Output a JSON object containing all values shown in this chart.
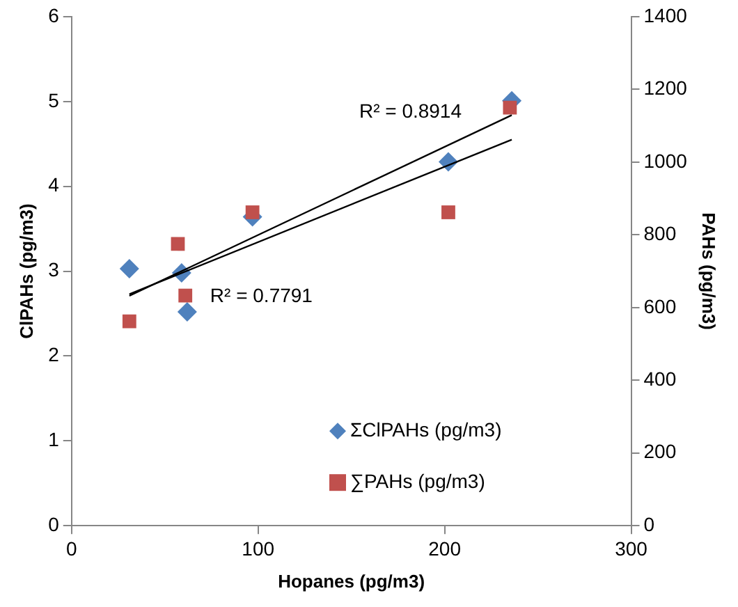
{
  "chart_data": {
    "type": "scatter",
    "xlabel": "Hopanes (pg/m3)",
    "ylabel": "ClPAHs (pg/m3)",
    "y2label": "PAHs (pg/m3)",
    "xlim": [
      0,
      300
    ],
    "xticks": [
      0,
      100,
      200,
      300
    ],
    "ylim": [
      0,
      6
    ],
    "yticks": [
      0,
      1,
      2,
      3,
      4,
      5,
      6
    ],
    "y2lim": [
      0,
      1400
    ],
    "y2ticks": [
      0,
      200,
      400,
      600,
      800,
      1000,
      1200,
      1400
    ],
    "grid": false,
    "legend": "bottom right",
    "annotations": [
      "R² = 0.8914",
      "R² = 0.7791"
    ],
    "series": [
      {
        "name": "ΣClPAHs (pg/m3)",
        "marker": "diamond",
        "color": "#4f81bd",
        "x": [
          31,
          59,
          62,
          97,
          202,
          236
        ],
        "values": [
          3.03,
          2.98,
          2.52,
          3.64,
          4.29,
          5.01
        ]
      },
      {
        "name": "∑PAHs (pg/m3)",
        "marker": "square",
        "axis": "y2",
        "color": "#c0504d",
        "x": [
          31,
          57,
          61,
          97,
          202,
          235
        ],
        "values": [
          562,
          775,
          633,
          862,
          862,
          1150
        ]
      },
      {
        "type": "line",
        "marker": "none",
        "color": "#000000",
        "x": [
          31,
          236
        ],
        "values": [
          2.71,
          4.84
        ]
      },
      {
        "type": "line",
        "marker": "none",
        "axis": "y2",
        "color": "#000000",
        "x": [
          31,
          236
        ],
        "values": [
          637,
          1062
        ]
      }
    ]
  }
}
